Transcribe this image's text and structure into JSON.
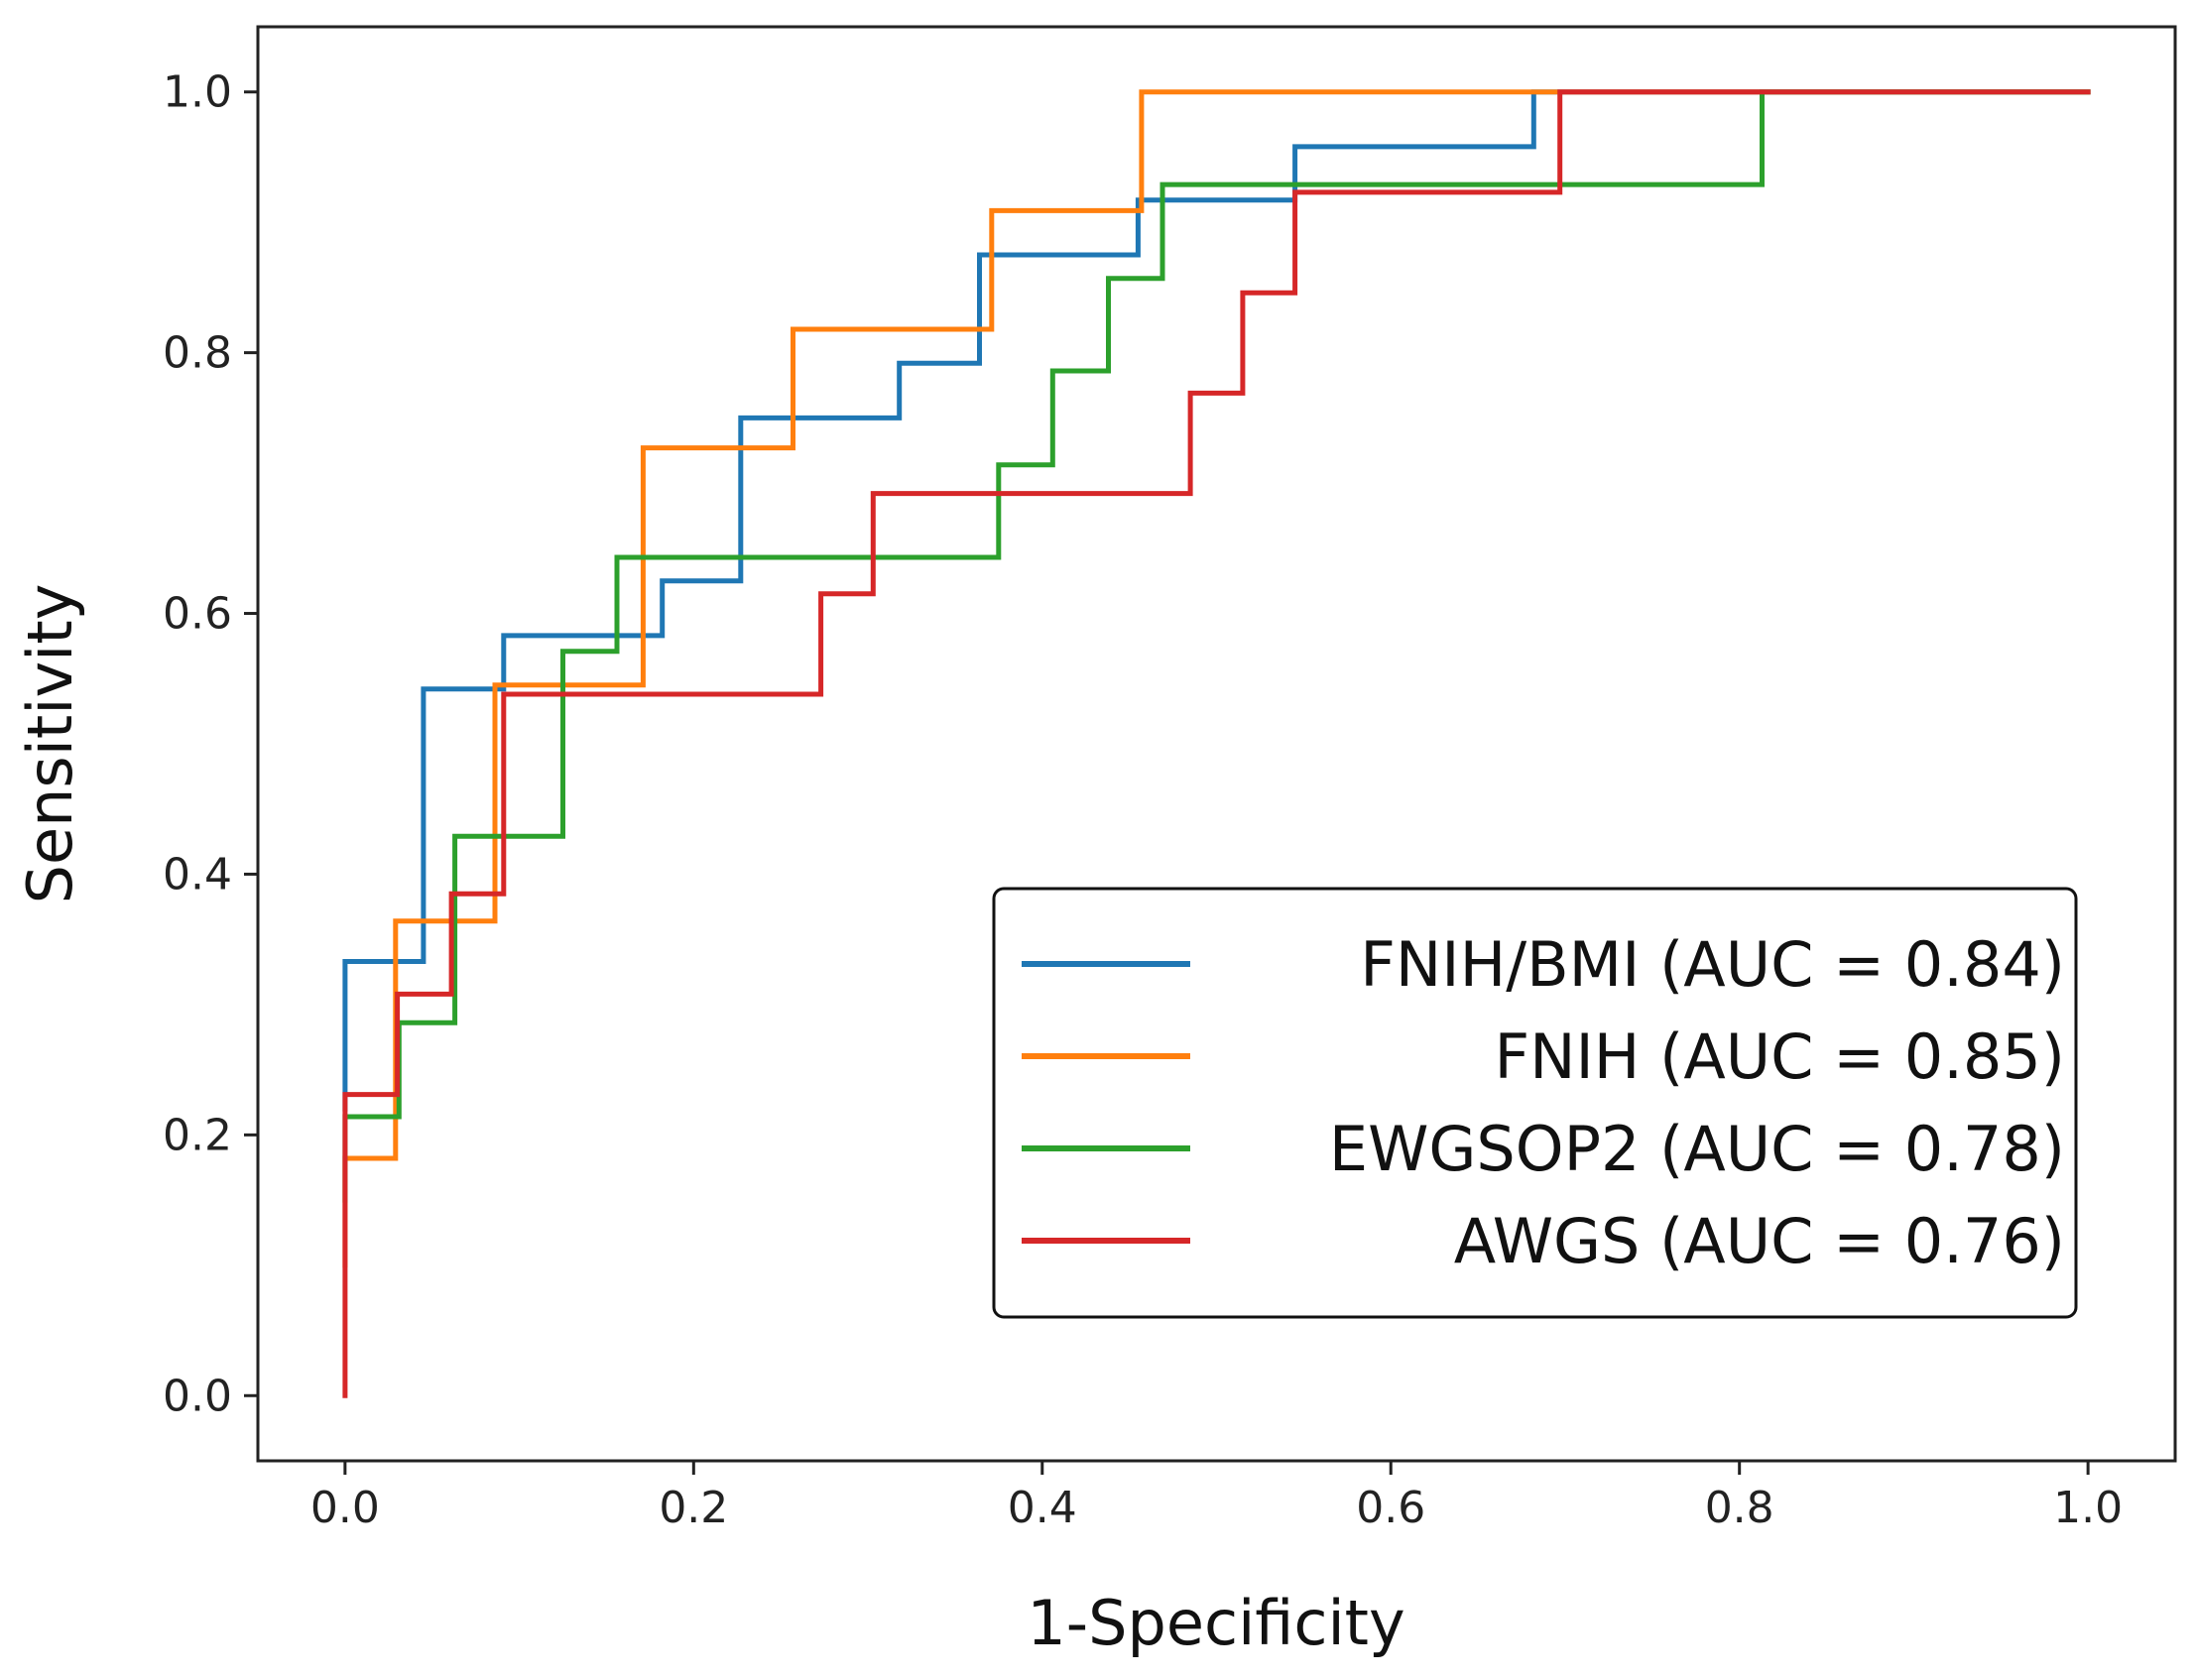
{
  "chart_data": {
    "type": "line",
    "title": "",
    "xlabel": "1-Specificity",
    "ylabel": "Sensitivity",
    "xlim": [
      -0.05,
      1.05
    ],
    "ylim": [
      -0.05,
      1.05
    ],
    "xticks": [
      0.0,
      0.2,
      0.4,
      0.6,
      0.8,
      1.0
    ],
    "yticks": [
      0.0,
      0.2,
      0.4,
      0.6,
      0.8,
      1.0
    ],
    "xtick_labels": [
      "0.0",
      "0.2",
      "0.4",
      "0.6",
      "0.8",
      "1.0"
    ],
    "ytick_labels": [
      "0.0",
      "0.2",
      "0.4",
      "0.6",
      "0.8",
      "1.0"
    ],
    "grid": false,
    "legend_position": "lower-right",
    "series": [
      {
        "name": "FNIH/BMI (AUC = 0.84)",
        "color": "#1f77b4",
        "x": [
          0,
          0,
          0.045,
          0.045,
          0.091,
          0.091,
          0.182,
          0.182,
          0.227,
          0.227,
          0.318,
          0.318,
          0.364,
          0.364,
          0.455,
          0.455,
          0.545,
          0.545,
          0.682,
          0.682,
          1.0
        ],
        "y": [
          0.22,
          0.333,
          0.333,
          0.542,
          0.542,
          0.583,
          0.583,
          0.625,
          0.625,
          0.75,
          0.75,
          0.792,
          0.792,
          0.875,
          0.875,
          0.917,
          0.917,
          0.958,
          0.958,
          1.0,
          1.0
        ]
      },
      {
        "name": "FNIH (AUC = 0.85)",
        "color": "#ff7f0e",
        "x": [
          0,
          0,
          0.029,
          0.029,
          0.086,
          0.086,
          0.171,
          0.171,
          0.257,
          0.257,
          0.371,
          0.371,
          0.457,
          0.457,
          1.0
        ],
        "y": [
          0.1,
          0.182,
          0.182,
          0.364,
          0.364,
          0.545,
          0.545,
          0.727,
          0.727,
          0.818,
          0.818,
          0.909,
          0.909,
          1.0,
          1.0
        ]
      },
      {
        "name": "EWGSOP2 (AUC = 0.78)",
        "color": "#2ca02c",
        "x": [
          0,
          0,
          0.031,
          0.031,
          0.063,
          0.063,
          0.125,
          0.125,
          0.156,
          0.156,
          0.375,
          0.375,
          0.406,
          0.406,
          0.438,
          0.438,
          0.469,
          0.469,
          0.813,
          0.813,
          1.0
        ],
        "y": [
          0.15,
          0.214,
          0.214,
          0.286,
          0.286,
          0.429,
          0.429,
          0.571,
          0.571,
          0.643,
          0.643,
          0.714,
          0.714,
          0.786,
          0.786,
          0.857,
          0.857,
          0.929,
          0.929,
          1.0,
          1.0
        ]
      },
      {
        "name": "AWGS (AUC = 0.76)",
        "color": "#d62728",
        "x": [
          0,
          0,
          0.03,
          0.03,
          0.061,
          0.061,
          0.091,
          0.091,
          0.273,
          0.273,
          0.303,
          0.303,
          0.485,
          0.485,
          0.515,
          0.515,
          0.545,
          0.545,
          0.697,
          0.697,
          1.0
        ],
        "y": [
          0.0,
          0.231,
          0.231,
          0.308,
          0.308,
          0.385,
          0.385,
          0.538,
          0.538,
          0.615,
          0.615,
          0.692,
          0.692,
          0.769,
          0.769,
          0.846,
          0.846,
          0.923,
          0.923,
          1.0,
          1.0
        ]
      }
    ]
  }
}
